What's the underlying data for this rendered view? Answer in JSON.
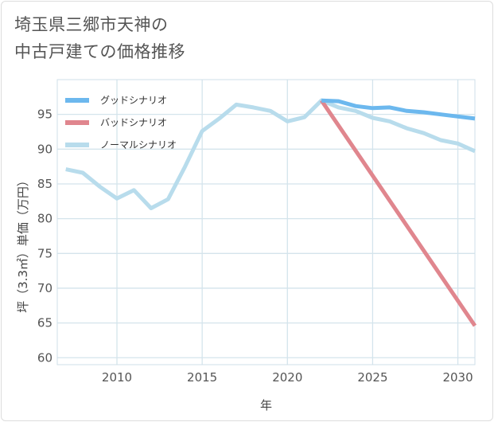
{
  "title": {
    "line1": "埼玉県三郷市天神の",
    "line2": "中古戸建ての価格推移"
  },
  "chart_data": {
    "type": "line",
    "xlabel": "年",
    "ylabel": "坪（3.3㎡）単価（万円）",
    "xlim": [
      2006.5,
      2031
    ],
    "ylim": [
      59,
      100
    ],
    "x_ticks": [
      2010,
      2015,
      2020,
      2025,
      2030
    ],
    "y_ticks": [
      60,
      65,
      70,
      75,
      80,
      85,
      90,
      95
    ],
    "grid": true,
    "legend_position": "top-left",
    "series": [
      {
        "name": "グッドシナリオ",
        "color": "#6cb8ee",
        "points": [
          [
            2022,
            97.0
          ],
          [
            2023,
            96.9
          ],
          [
            2024,
            96.2
          ],
          [
            2025,
            95.9
          ],
          [
            2026,
            96.0
          ],
          [
            2027,
            95.5
          ],
          [
            2028,
            95.3
          ],
          [
            2029,
            95.0
          ],
          [
            2030,
            94.7
          ],
          [
            2031,
            94.4
          ]
        ]
      },
      {
        "name": "バッドシナリオ",
        "color": "#e0868e",
        "points": [
          [
            2022,
            97.0
          ],
          [
            2031,
            64.6
          ]
        ]
      },
      {
        "name": "ノーマルシナリオ",
        "color": "#b8dcec",
        "points": [
          [
            2007,
            87.1
          ],
          [
            2008,
            86.6
          ],
          [
            2009,
            84.6
          ],
          [
            2010,
            82.9
          ],
          [
            2011,
            84.1
          ],
          [
            2012,
            81.5
          ],
          [
            2013,
            82.8
          ],
          [
            2014,
            87.5
          ],
          [
            2015,
            92.6
          ],
          [
            2016,
            94.4
          ],
          [
            2017,
            96.4
          ],
          [
            2018,
            96.0
          ],
          [
            2019,
            95.5
          ],
          [
            2020,
            94.0
          ],
          [
            2021,
            94.6
          ],
          [
            2022,
            97.0
          ],
          [
            2023,
            96.0
          ],
          [
            2024,
            95.5
          ],
          [
            2025,
            94.5
          ],
          [
            2026,
            94.0
          ],
          [
            2027,
            93.0
          ],
          [
            2028,
            92.3
          ],
          [
            2029,
            91.3
          ],
          [
            2030,
            90.8
          ],
          [
            2031,
            89.7
          ]
        ]
      }
    ]
  }
}
